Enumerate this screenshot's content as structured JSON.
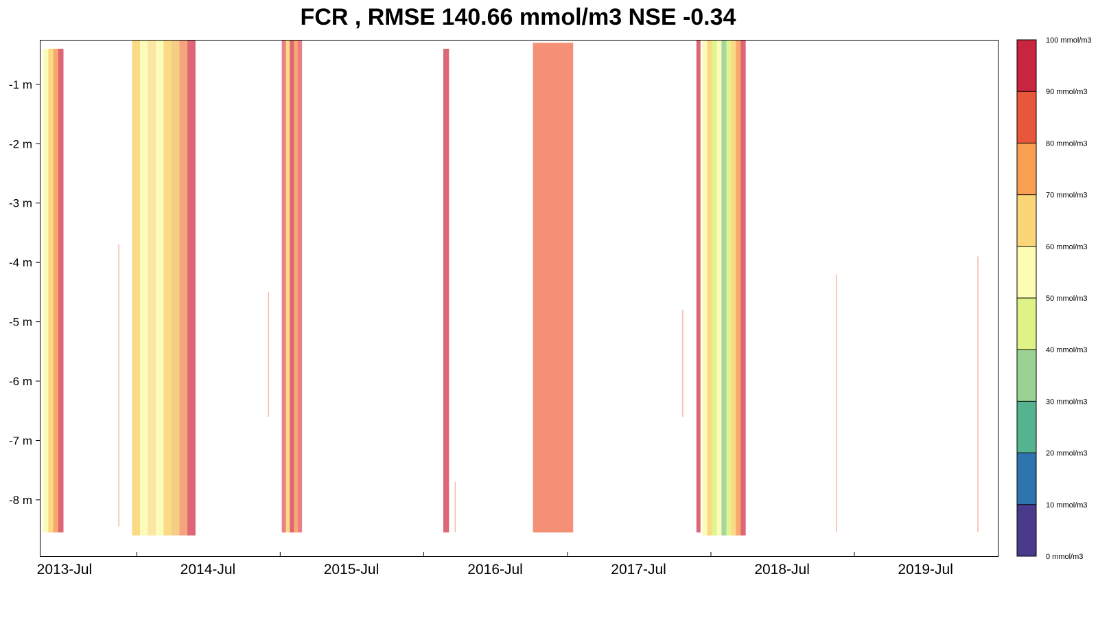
{
  "chart_data": {
    "type": "heatmap",
    "title": "FCR , RMSE 140.66 mmol/m3 NSE -0.34",
    "y_ticks": [
      {
        "value": -1,
        "label": "-1 m"
      },
      {
        "value": -2,
        "label": "-2 m"
      },
      {
        "value": -3,
        "label": "-3 m"
      },
      {
        "value": -4,
        "label": "-4 m"
      },
      {
        "value": -5,
        "label": "-5 m"
      },
      {
        "value": -6,
        "label": "-6 m"
      },
      {
        "value": -7,
        "label": "-7 m"
      },
      {
        "value": -8,
        "label": "-8 m"
      }
    ],
    "ylim": [
      -8.95,
      -0.25
    ],
    "xlim": [
      "2013-05-01",
      "2020-01-01"
    ],
    "x_ticks": [
      {
        "date": "2013-07-01",
        "label": "2013-Jul"
      },
      {
        "date": "2014-07-01",
        "label": "2014-Jul"
      },
      {
        "date": "2015-07-01",
        "label": "2015-Jul"
      },
      {
        "date": "2016-07-01",
        "label": "2016-Jul"
      },
      {
        "date": "2017-07-01",
        "label": "2017-Jul"
      },
      {
        "date": "2018-07-01",
        "label": "2018-Jul"
      },
      {
        "date": "2019-07-01",
        "label": "2019-Jul"
      }
    ],
    "x_minor_ticks": [
      "2014-01-01",
      "2015-01-01",
      "2016-01-01",
      "2017-01-01",
      "2018-01-01",
      "2019-01-01"
    ],
    "colorbar": {
      "unit": "mmol/m3",
      "levels": [
        {
          "from": 0,
          "to": 10,
          "color": "#4a3a8c"
        },
        {
          "from": 10,
          "to": 20,
          "color": "#2e74ae"
        },
        {
          "from": 20,
          "to": 30,
          "color": "#55b48f"
        },
        {
          "from": 30,
          "to": 40,
          "color": "#9ad293"
        },
        {
          "from": 40,
          "to": 50,
          "color": "#dff285"
        },
        {
          "from": 50,
          "to": 60,
          "color": "#fcfcb2"
        },
        {
          "from": 60,
          "to": 70,
          "color": "#fbd679"
        },
        {
          "from": 70,
          "to": 80,
          "color": "#f89f52"
        },
        {
          "from": 80,
          "to": 90,
          "color": "#e85739"
        },
        {
          "from": 90,
          "to": 100,
          "color": "#c8253f"
        }
      ],
      "tick_labels": [
        "0 mmol/m3",
        "10 mmol/m3",
        "20 mmol/m3",
        "30 mmol/m3",
        "40 mmol/m3",
        "50 mmol/m3",
        "60 mmol/m3",
        "70 mmol/m3",
        "80 mmol/m3",
        "90 mmol/m3",
        "100 mmol/m3"
      ]
    },
    "observation_periods": [
      {
        "start": "2013-05-08",
        "end": "2013-06-28",
        "top": -0.4,
        "bottom": -8.55,
        "colors": [
          "#fcfcb2",
          "#fbd679",
          "#f8a05e",
          "#d95568"
        ]
      },
      {
        "start": "2013-11-15",
        "end": "2013-11-17",
        "top": -3.7,
        "bottom": -8.45,
        "colors": [
          "#f4b39b"
        ]
      },
      {
        "start": "2013-12-20",
        "end": "2014-05-30",
        "top": -0.25,
        "bottom": -8.6,
        "colors": [
          "#fbd679",
          "#fcfcb2",
          "#fbe39a",
          "#fcfcb2",
          "#fbd679",
          "#f5c879",
          "#f49a6d",
          "#d95568"
        ]
      },
      {
        "start": "2014-12-01",
        "end": "2014-12-03",
        "top": -4.5,
        "bottom": -6.6,
        "colors": [
          "#f4b39b"
        ]
      },
      {
        "start": "2015-01-05",
        "end": "2015-02-25",
        "top": -0.25,
        "bottom": -8.55,
        "colors": [
          "#e8707c",
          "#fbd679",
          "#d95568",
          "#f8a05e",
          "#e8707c"
        ]
      },
      {
        "start": "2016-02-20",
        "end": "2016-03-05",
        "top": -0.4,
        "bottom": -8.55,
        "colors": [
          "#d95568"
        ]
      },
      {
        "start": "2016-03-20",
        "end": "2016-03-22",
        "top": -7.7,
        "bottom": -8.55,
        "colors": [
          "#f4b39b"
        ]
      },
      {
        "start": "2016-10-05",
        "end": "2017-01-15",
        "top": -0.3,
        "bottom": -8.55,
        "colors": [
          "#f38466"
        ]
      },
      {
        "start": "2017-10-20",
        "end": "2017-10-22",
        "top": -4.8,
        "bottom": -6.6,
        "colors": [
          "#f4b39b"
        ]
      },
      {
        "start": "2017-11-25",
        "end": "2017-12-05",
        "top": -0.25,
        "bottom": -8.55,
        "colors": [
          "#d95568"
        ]
      },
      {
        "start": "2017-12-10",
        "end": "2018-03-30",
        "top": -0.25,
        "bottom": -8.6,
        "colors": [
          "#fcfcb2",
          "#fbd679",
          "#dff285",
          "#fcfcb2",
          "#9ad293",
          "#dff285",
          "#fbd679",
          "#f8a05e",
          "#d95568"
        ]
      },
      {
        "start": "2018-11-15",
        "end": "2018-11-17",
        "top": -4.2,
        "bottom": -8.55,
        "colors": [
          "#f4b39b"
        ]
      },
      {
        "start": "2019-11-10",
        "end": "2019-11-12",
        "top": -3.9,
        "bottom": -8.55,
        "colors": [
          "#f4b39b"
        ]
      }
    ]
  }
}
